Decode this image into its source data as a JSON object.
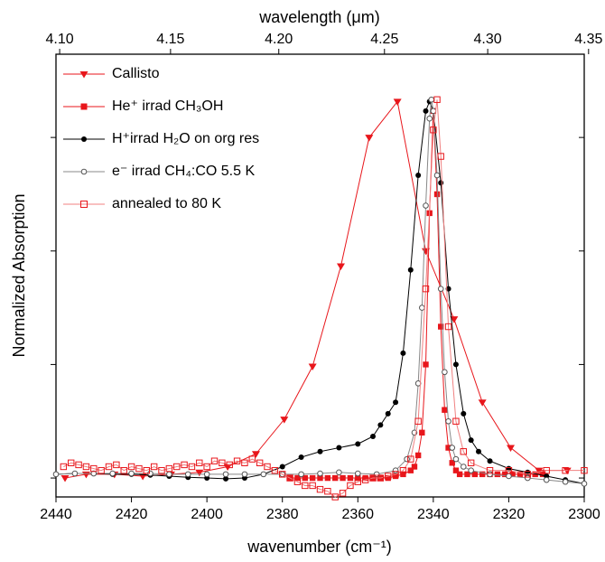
{
  "chart_data": {
    "type": "line",
    "xlabel": "wavenumber (cm⁻¹)",
    "x2label": "wavelength (μm)",
    "ylabel": "Normalized Absorption",
    "xlim": [
      2440,
      2300
    ],
    "xticks": [
      2440,
      2420,
      2400,
      2380,
      2360,
      2340,
      2320,
      2300
    ],
    "x2ticks": [
      {
        "value": 4.1,
        "label": "4.10"
      },
      {
        "value": 4.15,
        "label": "4.15"
      },
      {
        "value": 4.2,
        "label": "4.20"
      },
      {
        "value": 4.25,
        "label": "4.25"
      },
      {
        "value": 4.3,
        "label": "4.30"
      },
      {
        "value": 4.35,
        "label": "4.35"
      }
    ],
    "ylim": [
      -0.05,
      1.12
    ],
    "yticks": [
      0,
      0.3,
      0.6,
      0.9
    ],
    "legend": "upper left",
    "series": [
      {
        "name": "Callisto",
        "color": "#e8161b",
        "line_color": "#e8161b",
        "marker": "triangle-down",
        "x": [
          2437.6,
          2432,
          2424.5,
          2417,
          2409.5,
          2402,
          2394.5,
          2387,
          2379.5,
          2372,
          2364.5,
          2357,
          2349.5,
          2342,
          2334.5,
          2327,
          2319.5,
          2312,
          2304.5
        ],
        "values": [
          0.0,
          0.01,
          0.01,
          0.005,
          0.01,
          0.015,
          0.03,
          0.064,
          0.155,
          0.295,
          0.56,
          0.9,
          0.995,
          0.6,
          0.42,
          0.2,
          0.08,
          0.02,
          0.02
        ]
      },
      {
        "name": "He⁺ irrad CH₃OH",
        "color": "#e8161b",
        "line_color": "#e8161b",
        "marker": "square",
        "x": [
          2378,
          2376,
          2374,
          2372,
          2370,
          2368,
          2366,
          2364,
          2362,
          2360,
          2358,
          2356,
          2354,
          2352,
          2350,
          2348,
          2346,
          2345,
          2344,
          2343,
          2342,
          2341,
          2340,
          2339,
          2338,
          2337,
          2336,
          2335,
          2334,
          2333,
          2331,
          2329,
          2327,
          2325,
          2323,
          2321,
          2319,
          2317,
          2315,
          2313,
          2311
        ],
        "values": [
          0.0,
          0.0,
          0.0,
          0.0,
          0.0,
          0.0,
          0.0,
          0.0,
          0.0,
          0.0,
          0.0,
          0.0,
          0.0,
          0.0,
          0.005,
          0.01,
          0.02,
          0.03,
          0.06,
          0.12,
          0.3,
          0.7,
          0.97,
          0.75,
          0.4,
          0.18,
          0.08,
          0.04,
          0.02,
          0.01,
          0.01,
          0.01,
          0.01,
          0.01,
          0.01,
          0.01,
          0.01,
          0.01,
          0.01,
          0.01,
          0.01
        ]
      },
      {
        "name": "H⁺irrad H₂O on org res",
        "color": "#000000",
        "line_color": "#000000",
        "marker": "circle",
        "x": [
          2440,
          2435,
          2430,
          2425,
          2420,
          2415,
          2410,
          2405,
          2400,
          2395,
          2390,
          2385,
          2380,
          2375,
          2370,
          2365,
          2360,
          2356,
          2354,
          2352,
          2350,
          2348,
          2346,
          2344,
          2342,
          2341,
          2340,
          2338,
          2336,
          2334,
          2332,
          2330,
          2328,
          2325,
          2320,
          2315,
          2310,
          2305,
          2300
        ],
        "values": [
          0.01,
          0.012,
          0.012,
          0.01,
          0.01,
          0.008,
          0.005,
          0.002,
          0.0,
          -0.002,
          0.0,
          0.01,
          0.03,
          0.055,
          0.07,
          0.08,
          0.09,
          0.11,
          0.14,
          0.17,
          0.2,
          0.33,
          0.55,
          0.8,
          0.97,
          0.995,
          0.97,
          0.78,
          0.5,
          0.3,
          0.17,
          0.1,
          0.07,
          0.045,
          0.025,
          0.015,
          0.005,
          -0.005,
          -0.015
        ]
      },
      {
        "name": "e⁻ irrad CH₄:CO 5.5 K",
        "color": "#555555",
        "line_color": "#888888",
        "marker": "circle-open",
        "x": [
          2440,
          2435,
          2430,
          2425,
          2420,
          2415,
          2410,
          2405,
          2400,
          2395,
          2390,
          2385,
          2380,
          2375,
          2370,
          2365,
          2360,
          2355,
          2350,
          2347,
          2345,
          2344,
          2343,
          2342,
          2341,
          2340.5,
          2340,
          2339,
          2338,
          2337,
          2336,
          2335,
          2334,
          2332,
          2330,
          2325,
          2320,
          2315,
          2310,
          2305,
          2300
        ],
        "values": [
          0.01,
          0.012,
          0.012,
          0.012,
          0.012,
          0.012,
          0.01,
          0.01,
          0.01,
          0.01,
          0.01,
          0.01,
          0.01,
          0.01,
          0.012,
          0.015,
          0.012,
          0.01,
          0.02,
          0.05,
          0.12,
          0.25,
          0.45,
          0.72,
          0.95,
          1.0,
          0.97,
          0.8,
          0.5,
          0.28,
          0.15,
          0.08,
          0.05,
          0.03,
          0.02,
          0.01,
          0.005,
          0.0,
          -0.005,
          -0.01,
          -0.015
        ]
      },
      {
        "name": "annealed to 80 K",
        "color": "#e8161b",
        "line_color": "#f08080",
        "marker": "square-open",
        "x": [
          2438,
          2436,
          2434,
          2432,
          2430,
          2428,
          2426,
          2424,
          2422,
          2420,
          2418,
          2416,
          2414,
          2412,
          2410,
          2408,
          2406,
          2404,
          2402,
          2400,
          2398,
          2396,
          2394,
          2392,
          2390,
          2388,
          2386,
          2384,
          2382,
          2380,
          2378,
          2376,
          2374,
          2372,
          2370,
          2368,
          2366,
          2364,
          2362,
          2360,
          2358,
          2356,
          2354,
          2352,
          2350,
          2348,
          2346,
          2344,
          2342,
          2340,
          2339,
          2338,
          2336,
          2334,
          2332,
          2330,
          2325,
          2320,
          2315,
          2310,
          2305,
          2300
        ],
        "values": [
          0.03,
          0.04,
          0.035,
          0.03,
          0.025,
          0.02,
          0.03,
          0.035,
          0.02,
          0.03,
          0.025,
          0.02,
          0.03,
          0.02,
          0.025,
          0.03,
          0.035,
          0.03,
          0.04,
          0.03,
          0.045,
          0.04,
          0.035,
          0.045,
          0.04,
          0.05,
          0.04,
          0.03,
          0.02,
          0.01,
          0.0,
          -0.01,
          -0.02,
          -0.02,
          -0.03,
          -0.035,
          -0.05,
          -0.04,
          -0.02,
          -0.01,
          -0.005,
          0.0,
          0.0,
          0.005,
          0.01,
          0.02,
          0.05,
          0.15,
          0.5,
          0.92,
          1.0,
          0.85,
          0.4,
          0.15,
          0.07,
          0.04,
          0.02,
          0.02,
          0.01,
          0.02,
          0.02,
          0.02
        ]
      }
    ]
  }
}
